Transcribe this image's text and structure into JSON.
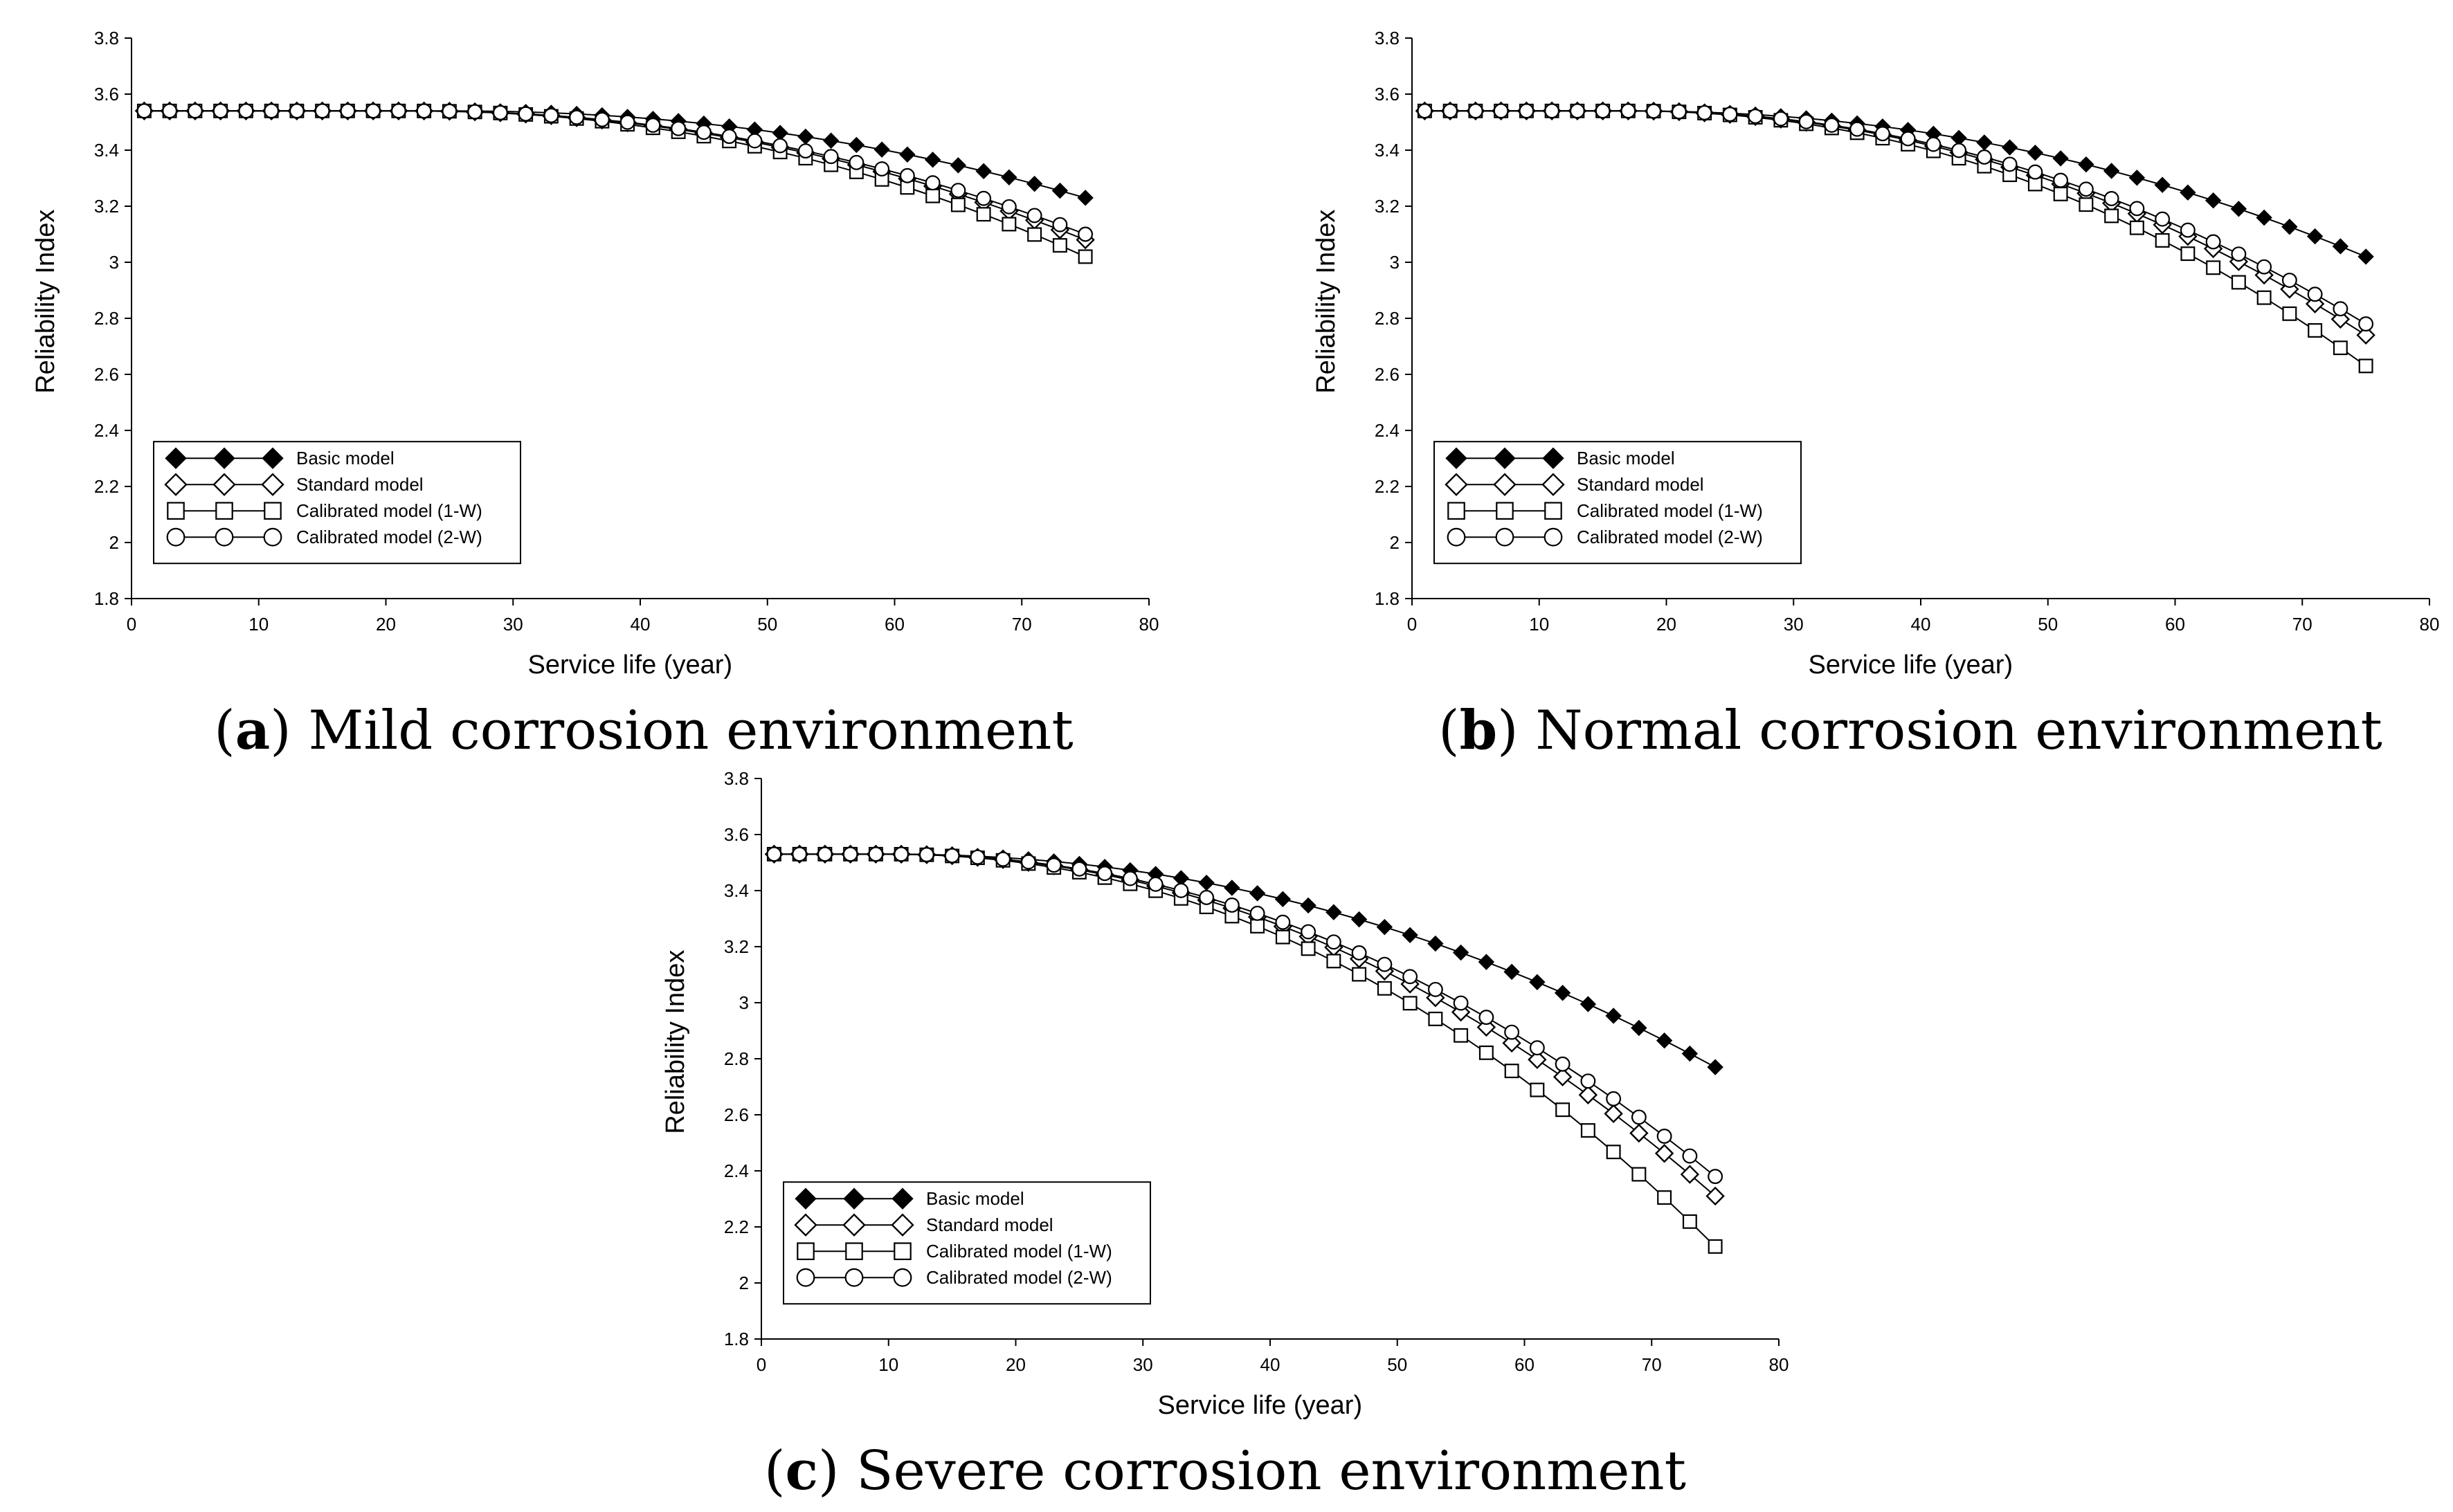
{
  "figure": {
    "captions": [
      {
        "letter": "a",
        "text": " Mild corrosion environment"
      },
      {
        "letter": "b",
        "text": " Normal corrosion environment"
      },
      {
        "letter": "c",
        "text": " Severe corrosion environment"
      }
    ]
  },
  "chart_data": [
    {
      "type": "line",
      "panel": "a",
      "title": "Mild corrosion environment",
      "xlabel": "Service life (year)",
      "ylabel": "Reliability Index",
      "xlim": [
        0,
        80
      ],
      "ylim": [
        1.8,
        3.8
      ],
      "xticks": [
        0,
        10,
        20,
        30,
        40,
        50,
        60,
        70,
        80
      ],
      "yticks": [
        1.8,
        2,
        2.2,
        2.4,
        2.6,
        2.8,
        3,
        3.2,
        3.4,
        3.6,
        3.8
      ],
      "ytick_labels": [
        "1.8",
        "2",
        "2.2",
        "2.4",
        "2.6",
        "2.8",
        "3",
        "3.2",
        "3.4",
        "3.6",
        "3.8"
      ],
      "grid": false,
      "legend_position": "bottom-left",
      "x": [
        1,
        3,
        5,
        7,
        9,
        11,
        13,
        15,
        17,
        19,
        21,
        23,
        25,
        27,
        29,
        31,
        33,
        35,
        37,
        39,
        41,
        43,
        45,
        47,
        49,
        51,
        53,
        55,
        57,
        59,
        61,
        63,
        65,
        67,
        69,
        71,
        73,
        75
      ],
      "series": [
        {
          "name": "Basic model",
          "marker": "diamond-filled",
          "onset": 25,
          "start": 3.54,
          "end": 3.23
        },
        {
          "name": "Standard model",
          "marker": "diamond-open",
          "onset": 22,
          "start": 3.54,
          "end": 3.08
        },
        {
          "name": "Calibrated model (1-W)",
          "marker": "square-open",
          "onset": 22,
          "start": 3.54,
          "end": 3.02
        },
        {
          "name": "Calibrated model (2-W)",
          "marker": "circle-open",
          "onset": 22,
          "start": 3.54,
          "end": 3.1
        }
      ]
    },
    {
      "type": "line",
      "panel": "b",
      "title": "Normal corrosion environment",
      "xlabel": "Service life (year)",
      "ylabel": "Reliability Index",
      "xlim": [
        0,
        80
      ],
      "ylim": [
        1.8,
        3.8
      ],
      "xticks": [
        0,
        10,
        20,
        30,
        40,
        50,
        60,
        70,
        80
      ],
      "yticks": [
        1.8,
        2,
        2.2,
        2.4,
        2.6,
        2.8,
        3,
        3.2,
        3.4,
        3.6,
        3.8
      ],
      "ytick_labels": [
        "1.8",
        "2",
        "2.2",
        "2.4",
        "2.6",
        "2.8",
        "3",
        "3.2",
        "3.4",
        "3.6",
        "3.8"
      ],
      "grid": false,
      "legend_position": "bottom-left",
      "x": [
        1,
        3,
        5,
        7,
        9,
        11,
        13,
        15,
        17,
        19,
        21,
        23,
        25,
        27,
        29,
        31,
        33,
        35,
        37,
        39,
        41,
        43,
        45,
        47,
        49,
        51,
        53,
        55,
        57,
        59,
        61,
        63,
        65,
        67,
        69,
        71,
        73,
        75
      ],
      "series": [
        {
          "name": "Basic model",
          "marker": "diamond-filled",
          "onset": 17,
          "start": 3.54,
          "end": 3.02
        },
        {
          "name": "Standard model",
          "marker": "diamond-open",
          "onset": 17,
          "start": 3.54,
          "end": 2.74
        },
        {
          "name": "Calibrated model (1-W)",
          "marker": "square-open",
          "onset": 17,
          "start": 3.54,
          "end": 2.63
        },
        {
          "name": "Calibrated model (2-W)",
          "marker": "circle-open",
          "onset": 17,
          "start": 3.54,
          "end": 2.78
        }
      ]
    },
    {
      "type": "line",
      "panel": "c",
      "title": "Severe corrosion environment",
      "xlabel": "Service life (year)",
      "ylabel": "Reliability Index",
      "xlim": [
        0,
        80
      ],
      "ylim": [
        1.8,
        3.8
      ],
      "xticks": [
        0,
        10,
        20,
        30,
        40,
        50,
        60,
        70,
        80
      ],
      "yticks": [
        1.8,
        2,
        2.2,
        2.4,
        2.6,
        2.8,
        3,
        3.2,
        3.4,
        3.6,
        3.8
      ],
      "ytick_labels": [
        "1.8",
        "2",
        "2.2",
        "2.4",
        "2.6",
        "2.8",
        "3",
        "3.2",
        "3.4",
        "3.6",
        "3.8"
      ],
      "grid": false,
      "legend_position": "bottom-left",
      "x": [
        1,
        3,
        5,
        7,
        9,
        11,
        13,
        15,
        17,
        19,
        21,
        23,
        25,
        27,
        29,
        31,
        33,
        35,
        37,
        39,
        41,
        43,
        45,
        47,
        49,
        51,
        53,
        55,
        57,
        59,
        61,
        63,
        65,
        67,
        69,
        71,
        73,
        75
      ],
      "series": [
        {
          "name": "Basic model",
          "marker": "diamond-filled",
          "onset": 10,
          "start": 3.53,
          "end": 2.77
        },
        {
          "name": "Standard model",
          "marker": "diamond-open",
          "onset": 10,
          "start": 3.53,
          "end": 2.31
        },
        {
          "name": "Calibrated model (1-W)",
          "marker": "square-open",
          "onset": 10,
          "start": 3.53,
          "end": 2.13
        },
        {
          "name": "Calibrated model (2-W)",
          "marker": "circle-open",
          "onset": 10,
          "start": 3.53,
          "end": 2.38
        }
      ]
    }
  ]
}
